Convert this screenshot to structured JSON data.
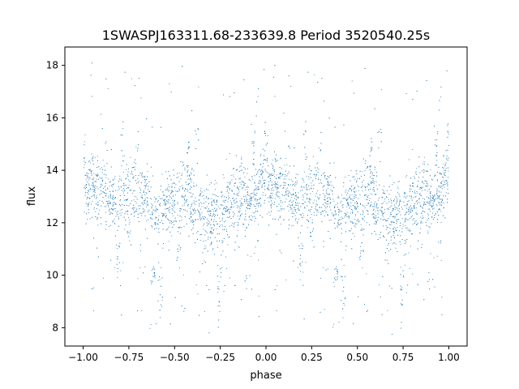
{
  "chart_data": {
    "type": "scatter",
    "title": "1SWASPJ163311.68-233639.8 Period 3520540.25s",
    "xlabel": "phase",
    "ylabel": "flux",
    "xlim": [
      -1.1,
      1.1
    ],
    "ylim": [
      7.3,
      18.7
    ],
    "x_ticks": [
      -1.0,
      -0.75,
      -0.5,
      -0.25,
      0.0,
      0.25,
      0.5,
      0.75,
      1.0
    ],
    "x_tick_labels": [
      "−1.00",
      "−0.75",
      "−0.50",
      "−0.25",
      "0.00",
      "0.25",
      "0.50",
      "0.75",
      "1.00"
    ],
    "y_ticks": [
      8,
      10,
      12,
      14,
      16,
      18
    ],
    "y_tick_labels": [
      "8",
      "10",
      "12",
      "14",
      "16",
      "18"
    ],
    "grid": false,
    "point_color": "#1f77b4",
    "series": [
      {
        "phase": [
          0.0,
          0.02,
          0.04,
          0.06,
          0.08,
          0.1,
          0.12,
          0.14,
          0.16,
          0.18,
          0.2,
          0.22,
          0.24,
          0.26,
          0.28,
          0.3,
          0.32,
          0.34,
          0.36,
          0.38,
          0.4,
          0.42,
          0.44,
          0.46,
          0.48,
          0.5,
          0.52,
          0.54,
          0.56,
          0.58,
          0.6,
          0.62,
          0.64,
          0.66,
          0.68,
          0.7,
          0.72,
          0.74,
          0.76,
          0.78,
          0.8,
          0.82,
          0.84,
          0.86,
          0.88,
          0.9,
          0.92,
          0.94,
          0.96,
          0.98,
          1.0
        ],
        "flux_center": [
          13.3,
          13.2,
          13.5,
          13.4,
          13.2,
          13.4,
          13.0,
          12.9,
          12.9,
          12.7,
          12.9,
          13.2,
          13.2,
          13.2,
          12.9,
          13.0,
          13.0,
          13.2,
          12.8,
          12.5,
          12.4,
          12.5,
          12.7,
          12.6,
          12.9,
          12.9,
          12.7,
          13.2,
          13.0,
          12.9,
          12.9,
          12.4,
          12.4,
          12.4,
          12.5,
          12.2,
          12.4,
          12.3,
          12.6,
          12.8,
          12.7,
          12.9,
          13.1,
          13.3,
          13.1,
          13.0,
          12.9,
          13.2,
          13.1,
          13.5,
          13.4
        ],
        "flux_spread": [
          1.1,
          1.0,
          1.2,
          1.1,
          1.1,
          1.2,
          1.0,
          1.0,
          1.0,
          1.1,
          1.1,
          1.2,
          1.3,
          1.2,
          1.1,
          1.1,
          1.0,
          1.2,
          1.0,
          1.0,
          1.0,
          1.1,
          1.2,
          1.1,
          1.1,
          1.2,
          1.0,
          1.3,
          1.2,
          1.1,
          1.1,
          1.0,
          1.0,
          1.1,
          1.2,
          1.0,
          1.1,
          1.1,
          1.2,
          1.2,
          1.1,
          1.1,
          1.2,
          1.2,
          1.2,
          1.1,
          1.0,
          1.2,
          1.1,
          1.3,
          1.2
        ],
        "dips": [
          [
            0.19,
            10.6
          ],
          [
            0.38,
            10.3
          ],
          [
            0.42,
            9.1
          ],
          [
            0.74,
            9.3
          ],
          [
            0.52,
            11.1
          ],
          [
            0.66,
            10.9
          ],
          [
            0.25,
            11.5
          ]
        ],
        "peaks": [
          [
            0.0,
            15.6
          ],
          [
            0.21,
            15.9
          ],
          [
            0.29,
            15.5
          ],
          [
            0.57,
            15.3
          ],
          [
            0.62,
            15.6
          ],
          [
            0.93,
            15.5
          ],
          [
            0.99,
            15.8
          ],
          [
            0.12,
            15.2
          ]
        ]
      }
    ]
  }
}
